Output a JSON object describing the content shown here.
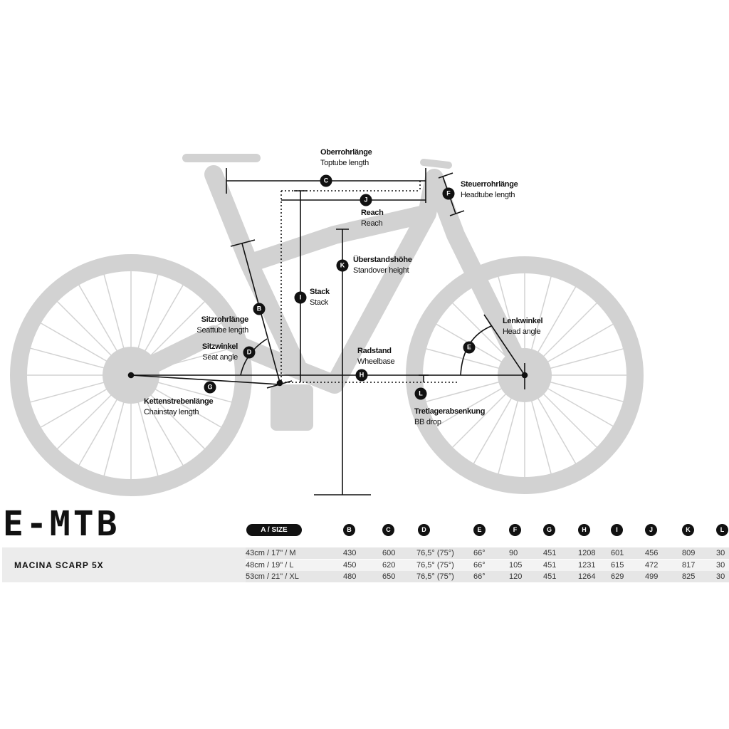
{
  "labels": {
    "C": {
      "letter": "C",
      "de": "Oberrohrlänge",
      "en": "Toptube length"
    },
    "J": {
      "letter": "J",
      "de": "Reach",
      "en": "Reach"
    },
    "F": {
      "letter": "F",
      "de": "Steuerrohrlänge",
      "en": "Headtube length"
    },
    "K": {
      "letter": "K",
      "de": "Überstandshöhe",
      "en": "Standover height"
    },
    "I": {
      "letter": "I",
      "de": "Stack",
      "en": "Stack"
    },
    "B": {
      "letter": "B",
      "de": "Sitzrohrlänge",
      "en": "Seattube length"
    },
    "D": {
      "letter": "D",
      "de": "Sitzwinkel",
      "en": "Seat angle"
    },
    "H": {
      "letter": "H",
      "de": "Radstand",
      "en": "Wheelbase"
    },
    "E": {
      "letter": "E",
      "de": "Lenkwinkel",
      "en": "Head angle"
    },
    "G": {
      "letter": "G",
      "de": "Kettenstrebenlänge",
      "en": "Chainstay length"
    },
    "L": {
      "letter": "L",
      "de": "Tretlagerabsenkung",
      "en": "BB drop"
    }
  },
  "table": {
    "title": "E-MTB",
    "size_header": "A / SIZE",
    "columns": [
      "B",
      "C",
      "D",
      "E",
      "F",
      "G",
      "H",
      "I",
      "J",
      "K",
      "L"
    ],
    "model": "MACINA SCARP 5X",
    "rows": [
      {
        "size": "43cm  /  17\"  /  M",
        "values": [
          "430",
          "600",
          "76,5° (75°)",
          "66°",
          "90",
          "451",
          "1208",
          "601",
          "456",
          "809",
          "30"
        ]
      },
      {
        "size": "48cm  /  19\"  /  L",
        "values": [
          "450",
          "620",
          "76,5° (75°)",
          "66°",
          "105",
          "451",
          "1231",
          "615",
          "472",
          "817",
          "30"
        ]
      },
      {
        "size": "53cm  /  21\"  /  XL",
        "values": [
          "480",
          "650",
          "76,5° (75°)",
          "66°",
          "120",
          "451",
          "1264",
          "629",
          "499",
          "825",
          "30"
        ]
      }
    ]
  },
  "colors": {
    "bike": "#d2d2d2",
    "ink": "#111111",
    "row_dark": "#e6e6e6",
    "row_light": "#f3f3f3"
  }
}
